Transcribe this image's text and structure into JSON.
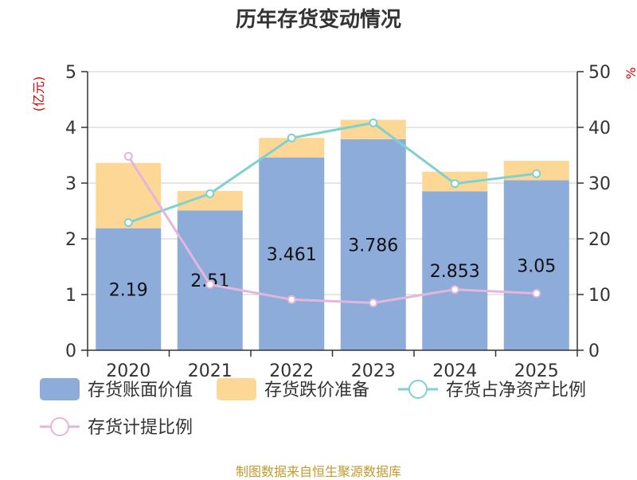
{
  "colors": {
    "book_value": "#8eacda",
    "provision": "#fdd795",
    "ratio_net_assets": "#7fd1d0",
    "provision_ratio": "#e3b6dc",
    "axis": "#333333",
    "grid": "#cccccc",
    "left_unit": "#e00000",
    "title": "#333333",
    "source": "#c29a2e"
  },
  "title": "历年存货变动情况",
  "source": "制图数据来自恒生聚源数据库",
  "chart_data": {
    "type": "bar",
    "title": "历年存货变动情况",
    "categories": [
      "2020",
      "2021",
      "2022",
      "2023",
      "2024",
      "2025"
    ],
    "left_axis": {
      "unit": "(亿元)",
      "ylim": [
        0,
        5
      ],
      "ticks": [
        "0",
        "1",
        "2",
        "3",
        "4",
        "5"
      ]
    },
    "right_axis": {
      "unit": "%",
      "ylim": [
        0,
        50
      ],
      "ticks": [
        "0",
        "10",
        "20",
        "30",
        "40",
        "50"
      ]
    },
    "grid": true,
    "legend_position": "bottom",
    "series": [
      {
        "name": "存货账面价值",
        "type": "bar",
        "stack": "inventory",
        "axis": "left",
        "values": [
          2.19,
          2.51,
          3.461,
          3.786,
          2.853,
          3.05
        ],
        "labels": [
          "2.19",
          "2.51",
          "3.461",
          "3.786",
          "2.853",
          "3.05"
        ]
      },
      {
        "name": "存货跌价准备",
        "type": "bar",
        "stack": "inventory",
        "axis": "left",
        "values": [
          1.17,
          0.35,
          0.35,
          0.35,
          0.35,
          0.35
        ]
      },
      {
        "name": "存货占净资产比例",
        "type": "line",
        "axis": "right",
        "values": [
          22.9,
          28.1,
          38.1,
          40.8,
          29.9,
          31.7
        ]
      },
      {
        "name": "存货计提比例",
        "type": "line",
        "axis": "right",
        "values": [
          34.8,
          11.8,
          9.1,
          8.5,
          10.9,
          10.2
        ]
      }
    ]
  }
}
